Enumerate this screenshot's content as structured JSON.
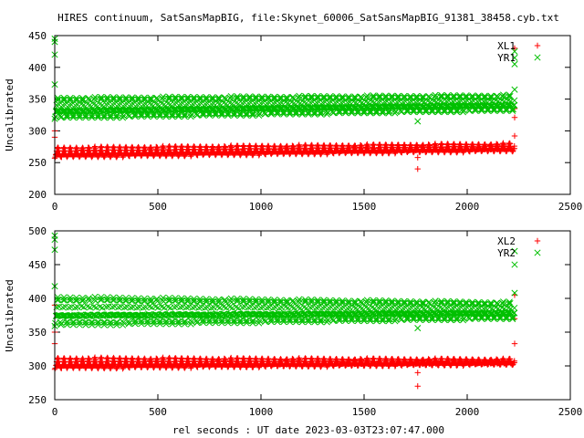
{
  "title": "HIRES continuum, SatSansMapBIG, file:Skynet_60006_SatSansMapBIG_91381_38458.cyb.txt",
  "xlabel": "rel seconds : UT date 2023-03-03T23:07:47.000",
  "colors": {
    "red": "#ff0000",
    "green": "#00c000"
  },
  "chart_data": [
    {
      "type": "scatter",
      "ylabel": "Uncalibrated",
      "xlim": [
        0,
        2500
      ],
      "ylim": [
        200,
        450
      ],
      "xticks": [
        "0",
        "500",
        "1000",
        "1500",
        "2000",
        "2500"
      ],
      "yticks": [
        "200",
        "250",
        "300",
        "350",
        "400",
        "450"
      ],
      "grid": false,
      "legend_position": "top-right",
      "series": [
        {
          "name": "XL1",
          "marker": "plus",
          "color": "#ff0000",
          "profile": {
            "x_start": 0,
            "x_end": 2230,
            "base_start": 258,
            "base_end": 268,
            "amp_start": 16,
            "amp_end": 12,
            "period": 30,
            "step": 3
          },
          "extra_points": [
            [
              0,
              290
            ],
            [
              0,
              300
            ],
            [
              5,
              262
            ],
            [
              1760,
              240
            ],
            [
              1760,
              258
            ],
            [
              2230,
              292
            ],
            [
              2230,
              321
            ],
            [
              2230,
              335
            ],
            [
              2230,
              430
            ]
          ]
        },
        {
          "name": "YR1",
          "marker": "x",
          "color": "#00c000",
          "profile": {
            "x_start": 0,
            "x_end": 2230,
            "base_start": 320,
            "base_end": 332,
            "amp_start": 32,
            "amp_end": 24,
            "period": 30,
            "step": 3
          },
          "extra_points": [
            [
              0,
              373
            ],
            [
              0,
              420
            ],
            [
              0,
              440
            ],
            [
              0,
              445
            ],
            [
              1760,
              315
            ],
            [
              2230,
              365
            ],
            [
              2230,
              405
            ],
            [
              2230,
              415
            ],
            [
              2230,
              425
            ]
          ]
        }
      ]
    },
    {
      "type": "scatter",
      "ylabel": "Uncalibrated",
      "xlim": [
        0,
        2500
      ],
      "ylim": [
        250,
        500
      ],
      "xticks": [
        "0",
        "500",
        "1000",
        "1500",
        "2000",
        "2500"
      ],
      "yticks": [
        "250",
        "300",
        "350",
        "400",
        "450",
        "500"
      ],
      "grid": false,
      "legend_position": "top-right",
      "series": [
        {
          "name": "XL2",
          "marker": "plus",
          "color": "#ff0000",
          "profile": {
            "x_start": 0,
            "x_end": 2230,
            "base_start": 296,
            "base_end": 302,
            "amp_start": 16,
            "amp_end": 8,
            "period": 30,
            "step": 3
          },
          "extra_points": [
            [
              0,
              333
            ],
            [
              0,
              350
            ],
            [
              0,
              390
            ],
            [
              1760,
              270
            ],
            [
              1760,
              290
            ],
            [
              2230,
              333
            ],
            [
              2230,
              370
            ],
            [
              2230,
              405
            ]
          ]
        },
        {
          "name": "YR2",
          "marker": "x",
          "color": "#00c000",
          "profile": {
            "x_start": 0,
            "x_end": 2230,
            "base_start": 360,
            "base_end": 370,
            "amp_start": 42,
            "amp_end": 24,
            "period": 30,
            "step": 3
          },
          "extra_points": [
            [
              0,
              418
            ],
            [
              0,
              472
            ],
            [
              0,
              487
            ],
            [
              0,
              493
            ],
            [
              1760,
              356
            ],
            [
              2230,
              408
            ],
            [
              2230,
              450
            ],
            [
              2230,
              470
            ]
          ]
        }
      ]
    }
  ]
}
